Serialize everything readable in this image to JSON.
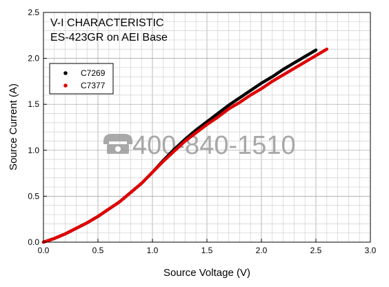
{
  "chart_data": {
    "type": "scatter",
    "title": "V-I CHARACTERISTIC",
    "subtitle": "ES-423GR on AEI Base",
    "xlabel": "Source Voltage (V)",
    "ylabel": "Source Current (A)",
    "xlim": [
      0,
      3.0
    ],
    "ylim": [
      0,
      2.5
    ],
    "x_ticks": [
      "0.0",
      "0.5",
      "1.0",
      "1.5",
      "2.0",
      "2.5",
      "3.0"
    ],
    "y_ticks": [
      "0.0",
      "0.5",
      "1.0",
      "1.5",
      "2.0",
      "2.5"
    ],
    "grid": true,
    "legend_position": "top-left",
    "watermark": "400-840-1510",
    "series": [
      {
        "name": "C7269",
        "color": "#000000",
        "points": [
          [
            0.0,
            0.0
          ],
          [
            0.1,
            0.04
          ],
          [
            0.2,
            0.09
          ],
          [
            0.3,
            0.15
          ],
          [
            0.4,
            0.21
          ],
          [
            0.5,
            0.28
          ],
          [
            0.6,
            0.36
          ],
          [
            0.7,
            0.44
          ],
          [
            0.8,
            0.54
          ],
          [
            0.9,
            0.64
          ],
          [
            1.0,
            0.76
          ],
          [
            1.1,
            0.89
          ],
          [
            1.2,
            1.01
          ],
          [
            1.3,
            1.12
          ],
          [
            1.4,
            1.22
          ],
          [
            1.5,
            1.31
          ],
          [
            1.6,
            1.4
          ],
          [
            1.7,
            1.49
          ],
          [
            1.8,
            1.57
          ],
          [
            1.9,
            1.65
          ],
          [
            2.0,
            1.73
          ],
          [
            2.1,
            1.8
          ],
          [
            2.2,
            1.88
          ],
          [
            2.3,
            1.95
          ],
          [
            2.4,
            2.02
          ],
          [
            2.5,
            2.09
          ]
        ]
      },
      {
        "name": "C7377",
        "color": "#e00000",
        "points": [
          [
            0.0,
            0.0
          ],
          [
            0.1,
            0.04
          ],
          [
            0.2,
            0.09
          ],
          [
            0.3,
            0.15
          ],
          [
            0.4,
            0.21
          ],
          [
            0.5,
            0.28
          ],
          [
            0.6,
            0.36
          ],
          [
            0.7,
            0.44
          ],
          [
            0.8,
            0.54
          ],
          [
            0.9,
            0.64
          ],
          [
            1.0,
            0.76
          ],
          [
            1.1,
            0.88
          ],
          [
            1.2,
            0.99
          ],
          [
            1.3,
            1.1
          ],
          [
            1.4,
            1.19
          ],
          [
            1.5,
            1.28
          ],
          [
            1.6,
            1.36
          ],
          [
            1.7,
            1.45
          ],
          [
            1.8,
            1.52
          ],
          [
            1.9,
            1.6
          ],
          [
            2.0,
            1.67
          ],
          [
            2.1,
            1.75
          ],
          [
            2.2,
            1.82
          ],
          [
            2.3,
            1.89
          ],
          [
            2.4,
            1.96
          ],
          [
            2.5,
            2.03
          ],
          [
            2.6,
            2.1
          ]
        ]
      }
    ]
  }
}
